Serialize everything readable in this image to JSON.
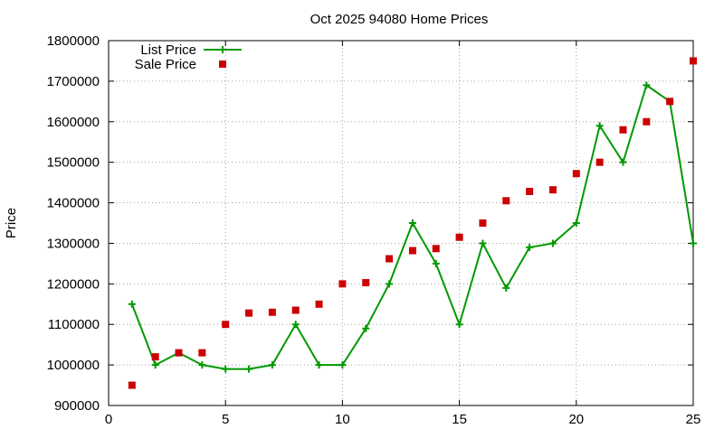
{
  "chart_data": {
    "type": "line",
    "title": "Oct 2025 94080 Home Prices",
    "xlabel": "",
    "ylabel": "Price",
    "xlim": [
      0,
      25
    ],
    "ylim": [
      900000,
      1800000
    ],
    "grid": true,
    "legend_position": "top-left",
    "x_ticks": [
      "0",
      "5",
      "10",
      "15",
      "20",
      "25"
    ],
    "y_ticks": [
      "900000",
      "1000000",
      "1100000",
      "1200000",
      "1300000",
      "1400000",
      "1500000",
      "1600000",
      "1700000",
      "1800000"
    ],
    "x": [
      1,
      2,
      3,
      4,
      5,
      6,
      7,
      8,
      9,
      10,
      11,
      12,
      13,
      14,
      15,
      16,
      17,
      18,
      19,
      20,
      21,
      22,
      23,
      24,
      25
    ],
    "series": [
      {
        "name": "List Price",
        "style": "line-plus",
        "color": "#009900",
        "values": [
          1150000,
          1000000,
          1030000,
          1000000,
          990000,
          990000,
          1000000,
          1100000,
          1000000,
          1000000,
          1090000,
          1200000,
          1350000,
          1250000,
          1100000,
          1300000,
          1190000,
          1290000,
          1300000,
          1350000,
          1590000,
          1500000,
          1690000,
          1650000,
          1300000
        ]
      },
      {
        "name": "Sale Price",
        "style": "square-points",
        "color": "#cc0000",
        "values": [
          950000,
          1020000,
          1030000,
          1030000,
          1100000,
          1128000,
          1130000,
          1135000,
          1150000,
          1200000,
          1203000,
          1262000,
          1282000,
          1287000,
          1315000,
          1350000,
          1405000,
          1428000,
          1432000,
          1472000,
          1500000,
          1580000,
          1600000,
          1650000,
          1750000
        ]
      }
    ]
  }
}
